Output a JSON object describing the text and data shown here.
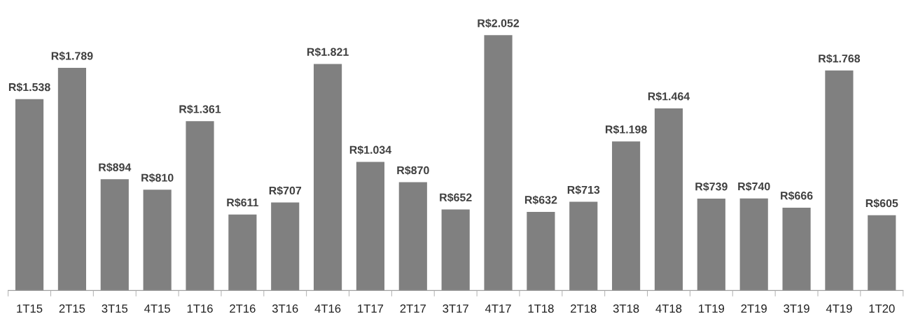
{
  "chart_data": {
    "type": "bar",
    "categories": [
      "1T15",
      "2T15",
      "3T15",
      "4T15",
      "1T16",
      "2T16",
      "3T16",
      "4T16",
      "1T17",
      "2T17",
      "3T17",
      "4T17",
      "1T18",
      "2T18",
      "3T18",
      "4T18",
      "1T19",
      "2T19",
      "3T19",
      "4T19",
      "1T20"
    ],
    "values": [
      1538,
      1789,
      894,
      810,
      1361,
      611,
      707,
      1821,
      1034,
      870,
      652,
      2052,
      632,
      713,
      1198,
      1464,
      739,
      740,
      666,
      1768,
      605
    ],
    "value_labels": [
      "R$1.538",
      "R$1.789",
      "R$894",
      "R$810",
      "R$1.361",
      "R$611",
      "R$707",
      "R$1.821",
      "R$1.034",
      "R$870",
      "R$652",
      "R$2.052",
      "R$632",
      "R$713",
      "R$1.198",
      "R$1.464",
      "R$739",
      "R$740",
      "R$666",
      "R$1.768",
      "R$605"
    ],
    "color": "#808080",
    "grid": false,
    "legend": false,
    "tick_labels": "x"
  }
}
